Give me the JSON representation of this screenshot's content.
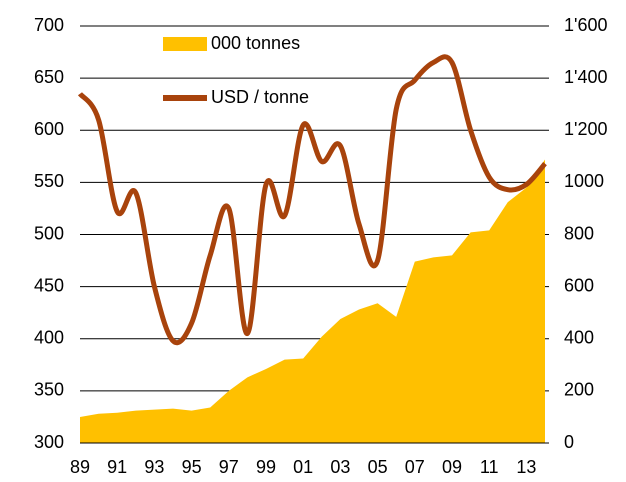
{
  "chart_data": {
    "type": "area_line",
    "categories": [
      "89",
      null,
      "91",
      null,
      "93",
      null,
      "95",
      null,
      "97",
      null,
      "99",
      null,
      "01",
      null,
      "03",
      null,
      "05",
      null,
      "07",
      null,
      "09",
      null,
      "11",
      null,
      "13",
      null
    ],
    "series": [
      {
        "name": "000 tonnes",
        "type": "area",
        "color": "#ffc000",
        "values": [
          325,
          328,
          329,
          331,
          332,
          333,
          331,
          334,
          350,
          363,
          371,
          380,
          381,
          402,
          419,
          428,
          434,
          421,
          474,
          478,
          480,
          502,
          504,
          531,
          545,
          572
        ]
      },
      {
        "name": "USD / tonne",
        "type": "line",
        "axis": "y2",
        "color": "#a8430c",
        "values": [
          1340,
          1240,
          888,
          960,
          600,
          392,
          460,
          720,
          900,
          420,
          992,
          872,
          1220,
          1080,
          1140,
          840,
          700,
          1280,
          1392,
          1460,
          1460,
          1200,
          1020,
          972,
          992,
          1072
        ]
      }
    ],
    "ylim": [
      300,
      700
    ],
    "yticks": [
      300,
      350,
      400,
      450,
      500,
      550,
      600,
      650,
      700
    ],
    "y2lim": [
      0,
      1600
    ],
    "y2ticks": [
      0,
      200,
      400,
      600,
      800,
      1000,
      {
        "value": 1200,
        "label": "1'200"
      },
      {
        "value": 1400,
        "label": "1'400"
      },
      {
        "value": 1600,
        "label": "1'600"
      }
    ],
    "grid": true,
    "legend": "upper left"
  }
}
